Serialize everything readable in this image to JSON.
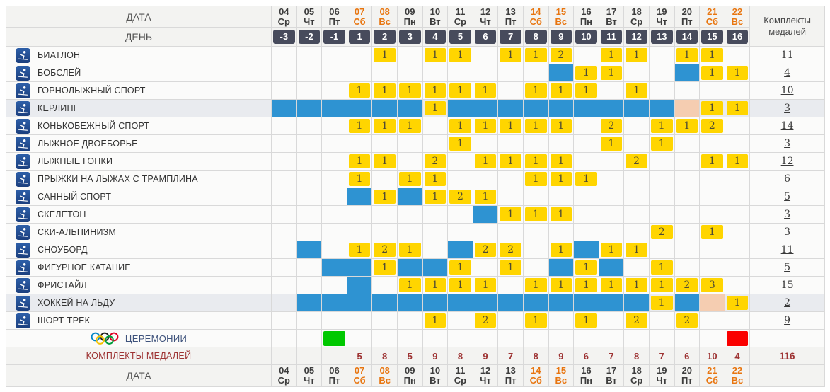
{
  "header": {
    "date_label": "ДАТА",
    "day_label": "ДЕНЬ",
    "medals_header_line1": "Комплекты",
    "medals_header_line2": "медалей",
    "days": [
      {
        "date": "04",
        "dow": "Ср",
        "day": "-3",
        "weekend": false
      },
      {
        "date": "05",
        "dow": "Чт",
        "day": "-2",
        "weekend": false
      },
      {
        "date": "06",
        "dow": "Пт",
        "day": "-1",
        "weekend": false
      },
      {
        "date": "07",
        "dow": "Сб",
        "day": "1",
        "weekend": true
      },
      {
        "date": "08",
        "dow": "Вс",
        "day": "2",
        "weekend": true
      },
      {
        "date": "09",
        "dow": "Пн",
        "day": "3",
        "weekend": false
      },
      {
        "date": "10",
        "dow": "Вт",
        "day": "4",
        "weekend": false
      },
      {
        "date": "11",
        "dow": "Ср",
        "day": "5",
        "weekend": false
      },
      {
        "date": "12",
        "dow": "Чт",
        "day": "6",
        "weekend": false
      },
      {
        "date": "13",
        "dow": "Пт",
        "day": "7",
        "weekend": false
      },
      {
        "date": "14",
        "dow": "Сб",
        "day": "8",
        "weekend": true
      },
      {
        "date": "15",
        "dow": "Вс",
        "day": "9",
        "weekend": true
      },
      {
        "date": "16",
        "dow": "Пн",
        "day": "10",
        "weekend": false
      },
      {
        "date": "17",
        "dow": "Вт",
        "day": "11",
        "weekend": false
      },
      {
        "date": "18",
        "dow": "Ср",
        "day": "12",
        "weekend": false
      },
      {
        "date": "19",
        "dow": "Чт",
        "day": "13",
        "weekend": false
      },
      {
        "date": "20",
        "dow": "Пт",
        "day": "14",
        "weekend": false
      },
      {
        "date": "21",
        "dow": "Сб",
        "day": "15",
        "weekend": true
      },
      {
        "date": "22",
        "dow": "Вс",
        "day": "16",
        "weekend": true
      }
    ]
  },
  "rows": [
    {
      "name": "БИАТЛОН",
      "icon": "biathlon-icon",
      "shaded": false,
      "total": "11",
      "cells": [
        "",
        "",
        "",
        "",
        1,
        "",
        1,
        1,
        "",
        1,
        1,
        2,
        "",
        1,
        1,
        "",
        1,
        1,
        ""
      ]
    },
    {
      "name": "БОБСЛЕЙ",
      "icon": "bobsleigh-icon",
      "shaded": false,
      "total": "4",
      "cells": [
        "",
        "",
        "",
        "",
        "",
        "",
        "",
        "",
        "",
        "",
        "",
        "b",
        1,
        1,
        "",
        "",
        "b",
        1,
        1
      ]
    },
    {
      "name": "ГОРНОЛЫЖНЫЙ СПОРТ",
      "icon": "alpine-skiing-icon",
      "shaded": false,
      "total": "10",
      "cells": [
        "",
        "",
        "",
        1,
        1,
        1,
        1,
        1,
        1,
        "",
        1,
        1,
        1,
        "",
        1,
        "",
        "",
        "",
        ""
      ]
    },
    {
      "name": "КЕРЛИНГ",
      "icon": "curling-icon",
      "shaded": true,
      "total": "3",
      "cells": [
        "b",
        "b",
        "b",
        "b",
        "b",
        "b",
        1,
        "b",
        "b",
        "b",
        "b",
        "b",
        "b",
        "b",
        "b",
        "b",
        "p",
        1,
        1
      ]
    },
    {
      "name": "КОНЬКОБЕЖНЫЙ СПОРТ",
      "icon": "speed-skating-icon",
      "shaded": false,
      "total": "14",
      "cells": [
        "",
        "",
        "",
        1,
        1,
        1,
        "",
        1,
        1,
        1,
        1,
        1,
        "",
        2,
        "",
        1,
        1,
        2,
        ""
      ]
    },
    {
      "name": "ЛЫЖНОЕ ДВОЕБОРЬЕ",
      "icon": "nordic-combined-icon",
      "shaded": false,
      "total": "3",
      "cells": [
        "",
        "",
        "",
        "",
        "",
        "",
        "",
        1,
        "",
        "",
        "",
        "",
        "",
        1,
        "",
        1,
        "",
        "",
        ""
      ]
    },
    {
      "name": "ЛЫЖНЫЕ ГОНКИ",
      "icon": "cross-country-skiing-icon",
      "shaded": false,
      "total": "12",
      "cells": [
        "",
        "",
        "",
        1,
        1,
        "",
        2,
        "",
        1,
        1,
        1,
        1,
        "",
        "",
        2,
        "",
        "",
        1,
        1
      ]
    },
    {
      "name": "ПРЫЖКИ НА ЛЫЖАХ С ТРАМПЛИНА",
      "icon": "ski-jumping-icon",
      "shaded": false,
      "total": "6",
      "cells": [
        "",
        "",
        "",
        1,
        "",
        1,
        1,
        "",
        "",
        "",
        1,
        1,
        1,
        "",
        "",
        "",
        "",
        "",
        ""
      ]
    },
    {
      "name": "САННЫЙ СПОРТ",
      "icon": "luge-icon",
      "shaded": false,
      "total": "5",
      "cells": [
        "",
        "",
        "",
        "b",
        1,
        "b",
        1,
        2,
        1,
        "",
        "",
        "",
        "",
        "",
        "",
        "",
        "",
        "",
        ""
      ]
    },
    {
      "name": "СКЕЛЕТОН",
      "icon": "skeleton-icon",
      "shaded": false,
      "total": "3",
      "cells": [
        "",
        "",
        "",
        "",
        "",
        "",
        "",
        "",
        "b",
        1,
        1,
        1,
        "",
        "",
        "",
        "",
        "",
        "",
        ""
      ]
    },
    {
      "name": "СКИ-АЛЬПИНИЗМ",
      "icon": "ski-mountaineering-icon",
      "shaded": false,
      "total": "3",
      "cells": [
        "",
        "",
        "",
        "",
        "",
        "",
        "",
        "",
        "",
        "",
        "",
        "",
        "",
        "",
        "",
        2,
        "",
        1,
        ""
      ]
    },
    {
      "name": "СНОУБОРД",
      "icon": "snowboard-icon",
      "shaded": false,
      "total": "11",
      "cells": [
        "",
        "b",
        "",
        1,
        2,
        1,
        "",
        "b",
        2,
        2,
        "",
        1,
        "b",
        1,
        1,
        "",
        "",
        "",
        ""
      ]
    },
    {
      "name": "ФИГУРНОЕ КАТАНИЕ",
      "icon": "figure-skating-icon",
      "shaded": false,
      "total": "5",
      "cells": [
        "",
        "",
        "b",
        "b",
        1,
        "b",
        "b",
        1,
        "",
        1,
        "",
        "b",
        1,
        "b",
        "",
        1,
        "",
        "",
        ""
      ]
    },
    {
      "name": "ФРИСТАЙЛ",
      "icon": "freestyle-skiing-icon",
      "shaded": false,
      "total": "15",
      "cells": [
        "",
        "",
        "",
        "b",
        "",
        1,
        1,
        1,
        1,
        "",
        1,
        1,
        1,
        1,
        1,
        1,
        2,
        3,
        ""
      ]
    },
    {
      "name": "ХОККЕЙ НА ЛЬДУ",
      "icon": "ice-hockey-icon",
      "shaded": true,
      "total": "2",
      "cells": [
        "",
        "b",
        "b",
        "b",
        "b",
        "b",
        "b",
        "b",
        "b",
        "b",
        "b",
        "b",
        "b",
        "b",
        "b",
        1,
        "b",
        "p",
        1
      ]
    },
    {
      "name": "ШОРТ-ТРЕК",
      "icon": "short-track-icon",
      "shaded": false,
      "total": "9",
      "cells": [
        "",
        "",
        "",
        "",
        "",
        "",
        1,
        "",
        2,
        "",
        1,
        "",
        1,
        "",
        2,
        "",
        2,
        "",
        ""
      ]
    }
  ],
  "ceremonies": {
    "label": "ЦЕРЕМОНИИ",
    "icon": "olympic-rings-icon",
    "cells": [
      "",
      "",
      "g",
      "",
      "",
      "",
      "",
      "",
      "",
      "",
      "",
      "",
      "",
      "",
      "",
      "",
      "",
      "",
      "r"
    ],
    "total": ""
  },
  "medals_row": {
    "label": "КОМПЛЕКТЫ МЕДАЛЕЙ",
    "values": [
      "",
      "",
      "",
      "5",
      "8",
      "5",
      "9",
      "8",
      "9",
      "7",
      "8",
      "9",
      "6",
      "7",
      "8",
      "7",
      "6",
      "10",
      "4"
    ],
    "total": "116"
  },
  "footer": {
    "date_label": "ДАТА"
  },
  "colors": {
    "medal_cell": "#ffd500",
    "competition_cell": "#2e93d2",
    "reserve_cell": "#f5cdb1",
    "opening_ceremony_cell": "#00c800",
    "closing_ceremony_cell": "#fa0000",
    "day_badge": "#474b5c",
    "weekend_text": "#e8750f",
    "medal_totals_text": "#9e3434"
  }
}
